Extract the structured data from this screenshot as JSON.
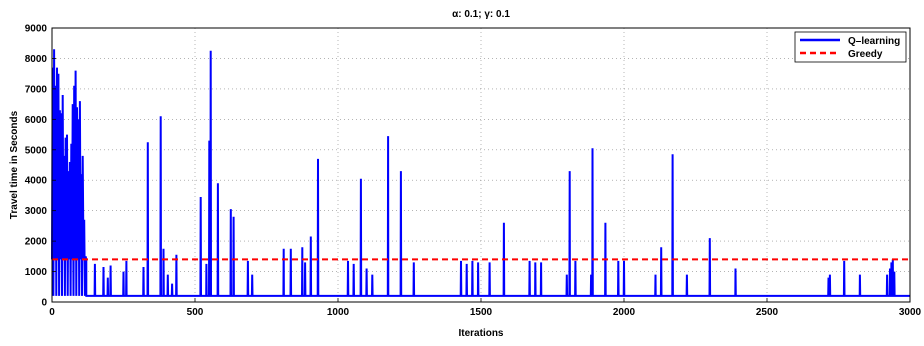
{
  "chart_data": {
    "type": "line",
    "title": "α: 0.1; γ: 0.1",
    "xlabel": "Iterations",
    "ylabel": "Travel time in Seconds",
    "xlim": [
      0,
      3000
    ],
    "ylim": [
      0,
      9000
    ],
    "xticks": [
      0,
      500,
      1000,
      1500,
      2000,
      2500,
      3000
    ],
    "yticks": [
      0,
      1000,
      2000,
      3000,
      4000,
      5000,
      6000,
      7000,
      8000,
      9000
    ],
    "grid": true,
    "legend_position": "top-right",
    "baseline": 200,
    "series": [
      {
        "name": "Q–learning",
        "color": "#0000ff",
        "style": "solid",
        "dense_segment": {
          "x_range": [
            0,
            120
          ],
          "low": 200,
          "high": [
            8300,
            8300,
            7500,
            6800,
            6000,
            5500,
            5200,
            7700,
            7600,
            6600,
            5400,
            2700
          ]
        },
        "spikes": [
          {
            "x": 150,
            "y": 1250
          },
          {
            "x": 180,
            "y": 1150
          },
          {
            "x": 195,
            "y": 800
          },
          {
            "x": 205,
            "y": 1200
          },
          {
            "x": 250,
            "y": 1000
          },
          {
            "x": 260,
            "y": 1350
          },
          {
            "x": 320,
            "y": 1150
          },
          {
            "x": 335,
            "y": 5250
          },
          {
            "x": 380,
            "y": 6100
          },
          {
            "x": 390,
            "y": 1750
          },
          {
            "x": 405,
            "y": 900
          },
          {
            "x": 420,
            "y": 600
          },
          {
            "x": 435,
            "y": 1550
          },
          {
            "x": 520,
            "y": 3450
          },
          {
            "x": 540,
            "y": 1250
          },
          {
            "x": 550,
            "y": 5300
          },
          {
            "x": 555,
            "y": 8250
          },
          {
            "x": 580,
            "y": 3900
          },
          {
            "x": 625,
            "y": 3050
          },
          {
            "x": 635,
            "y": 2800
          },
          {
            "x": 685,
            "y": 1350
          },
          {
            "x": 700,
            "y": 900
          },
          {
            "x": 810,
            "y": 1750
          },
          {
            "x": 835,
            "y": 1750
          },
          {
            "x": 875,
            "y": 1800
          },
          {
            "x": 885,
            "y": 1300
          },
          {
            "x": 905,
            "y": 2150
          },
          {
            "x": 930,
            "y": 4700
          },
          {
            "x": 1035,
            "y": 1350
          },
          {
            "x": 1055,
            "y": 1250
          },
          {
            "x": 1080,
            "y": 4050
          },
          {
            "x": 1100,
            "y": 1100
          },
          {
            "x": 1120,
            "y": 900
          },
          {
            "x": 1175,
            "y": 5450
          },
          {
            "x": 1220,
            "y": 4300
          },
          {
            "x": 1265,
            "y": 1300
          },
          {
            "x": 1430,
            "y": 1350
          },
          {
            "x": 1450,
            "y": 1250
          },
          {
            "x": 1470,
            "y": 1350
          },
          {
            "x": 1490,
            "y": 1300
          },
          {
            "x": 1530,
            "y": 1300
          },
          {
            "x": 1580,
            "y": 2600
          },
          {
            "x": 1670,
            "y": 1350
          },
          {
            "x": 1690,
            "y": 1300
          },
          {
            "x": 1710,
            "y": 1300
          },
          {
            "x": 1800,
            "y": 900
          },
          {
            "x": 1810,
            "y": 4300
          },
          {
            "x": 1830,
            "y": 1350
          },
          {
            "x": 1885,
            "y": 900
          },
          {
            "x": 1890,
            "y": 5050
          },
          {
            "x": 1935,
            "y": 2600
          },
          {
            "x": 1980,
            "y": 1350
          },
          {
            "x": 2000,
            "y": 1350
          },
          {
            "x": 2110,
            "y": 900
          },
          {
            "x": 2130,
            "y": 1800
          },
          {
            "x": 2170,
            "y": 4850
          },
          {
            "x": 2220,
            "y": 900
          },
          {
            "x": 2300,
            "y": 2100
          },
          {
            "x": 2390,
            "y": 1100
          },
          {
            "x": 2715,
            "y": 800
          },
          {
            "x": 2720,
            "y": 900
          },
          {
            "x": 2770,
            "y": 1350
          },
          {
            "x": 2825,
            "y": 900
          },
          {
            "x": 2920,
            "y": 900
          },
          {
            "x": 2930,
            "y": 1100
          },
          {
            "x": 2935,
            "y": 1300
          },
          {
            "x": 2940,
            "y": 1400
          },
          {
            "x": 2945,
            "y": 1000
          }
        ]
      },
      {
        "name": "Greedy",
        "color": "#ff0000",
        "style": "dashed",
        "values": [
          {
            "x": 0,
            "y": 1400
          },
          {
            "x": 3000,
            "y": 1400
          }
        ]
      }
    ]
  }
}
